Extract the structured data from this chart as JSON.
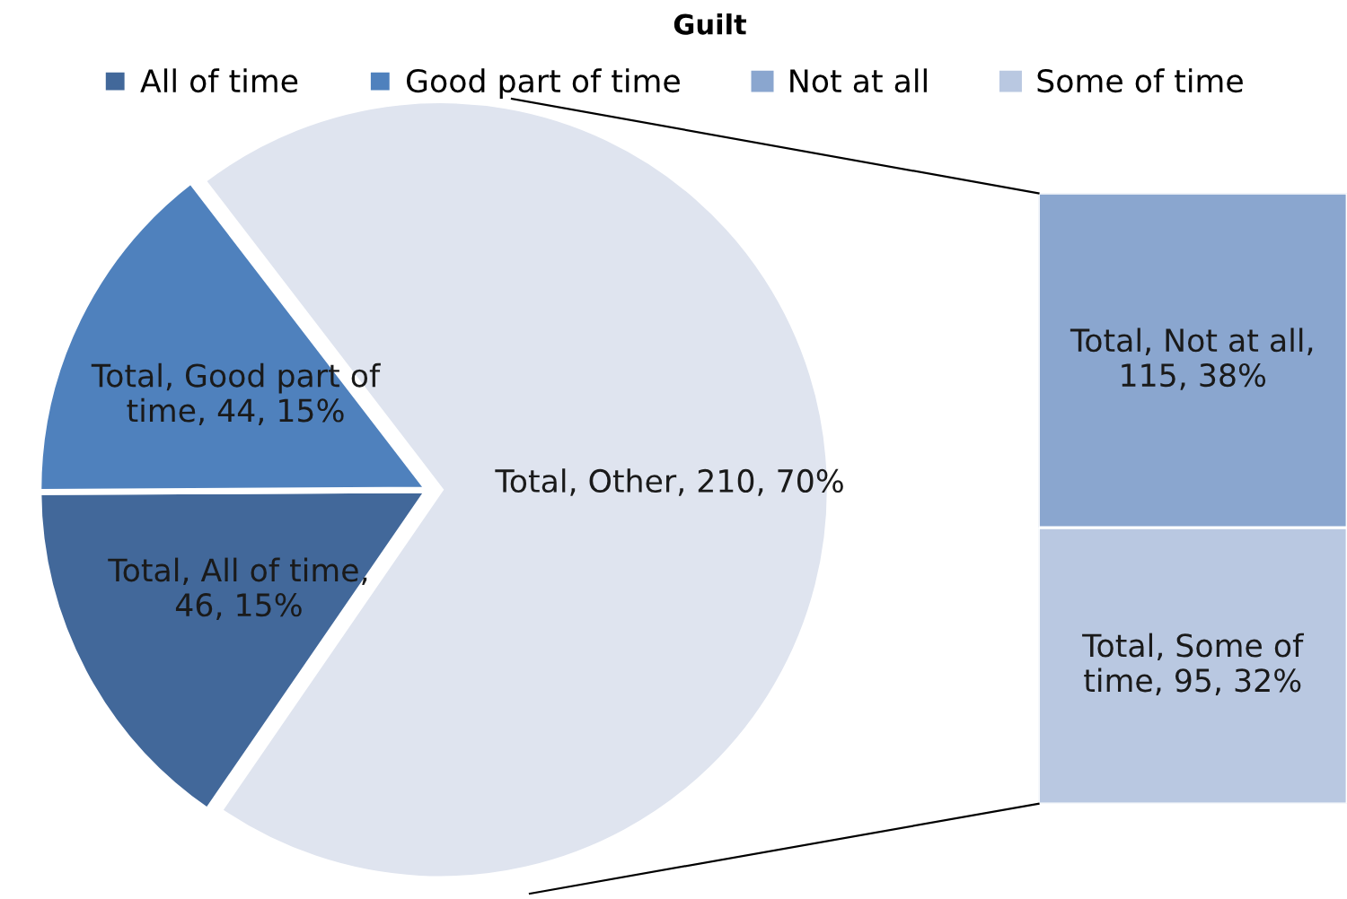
{
  "chart_data": [
    {
      "type": "pie",
      "title": "Guilt",
      "categories": [
        "All of time",
        "Good part of time",
        null
      ],
      "values": [
        46,
        44,
        210
      ],
      "colors": [
        "#42689a",
        "#4f81bd",
        "#dfe4ef"
      ],
      "value_labels": [
        "Total, All of time, 46, 15%",
        "Total, Good part of time, 44, 15%",
        "Total, Other, 210, 70%"
      ],
      "legend": "top"
    },
    {
      "type": "bar",
      "stacked": true,
      "categories": [
        null
      ],
      "legend": "top",
      "series": [
        {
          "name": "Some of time",
          "color": "#b9c8e1",
          "values": [
            95
          ],
          "value_labels": [
            "Total, Some of time, 95, 32%"
          ]
        },
        {
          "name": "Not at all",
          "color": "#8aa6cf",
          "values": [
            115
          ],
          "value_labels": [
            "Total, Not at all, 115, 38%"
          ]
        }
      ]
    }
  ]
}
